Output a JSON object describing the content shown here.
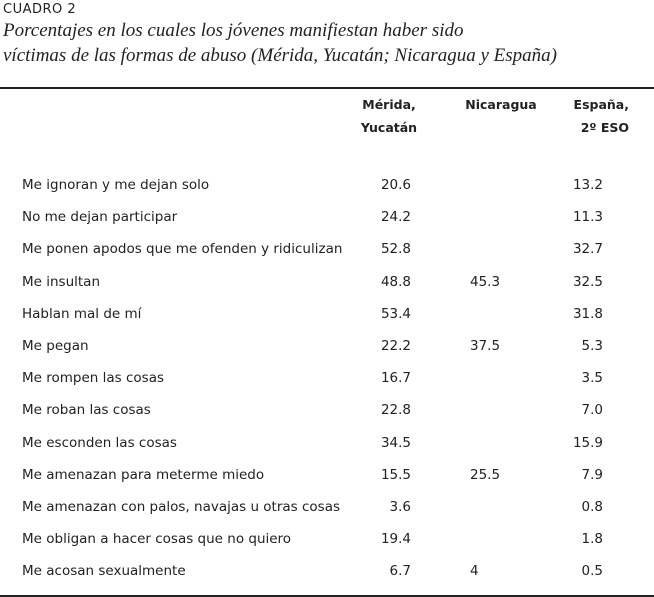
{
  "header": {
    "label": "CUADRO 2",
    "title_lines": [
      "Porcentajes en los cuales los jóvenes manifiestan haber sido",
      "víctimas de las formas de abuso (Mérida, Yucatán; Nicaragua y España)"
    ]
  },
  "table": {
    "columns": [
      [
        "Mérida,",
        "Yucatán"
      ],
      [
        "Nicaragua"
      ],
      [
        "España,",
        "2º ESO"
      ]
    ],
    "rows": [
      {
        "label": "Me ignoran y me dejan solo",
        "cells": [
          "20.6",
          null,
          "13.2"
        ]
      },
      {
        "label": "No me dejan participar",
        "cells": [
          "24.2",
          null,
          "11.3"
        ]
      },
      {
        "label": "Me ponen apodos que me ofenden y ridiculizan",
        "cells": [
          "52.8",
          null,
          "32.7"
        ]
      },
      {
        "label": "Me insultan",
        "cells": [
          "48.8",
          "45.3",
          "32.5"
        ]
      },
      {
        "label": "Hablan mal de mí",
        "cells": [
          "53.4",
          null,
          "31.8"
        ]
      },
      {
        "label": "Me pegan",
        "cells": [
          "22.2",
          "37.5",
          "5.3"
        ]
      },
      {
        "label": "Me rompen las cosas",
        "cells": [
          "16.7",
          null,
          "3.5"
        ]
      },
      {
        "label": "Me roban las cosas",
        "cells": [
          "22.8",
          null,
          "7.0"
        ]
      },
      {
        "label": "Me esconden las cosas",
        "cells": [
          "34.5",
          null,
          "15.9"
        ]
      },
      {
        "label": "Me amenazan para meterme miedo",
        "cells": [
          "15.5",
          "25.5",
          "7.9"
        ]
      },
      {
        "label": "Me amenazan con palos, navajas u otras cosas",
        "cells": [
          "3.6",
          null,
          "0.8"
        ]
      },
      {
        "label": "Me obligan a hacer cosas que no quiero",
        "cells": [
          "19.4",
          null,
          "1.8"
        ]
      },
      {
        "label": "Me acosan sexualmente",
        "cells": [
          "6.7",
          "4",
          "0.5"
        ]
      }
    ]
  }
}
